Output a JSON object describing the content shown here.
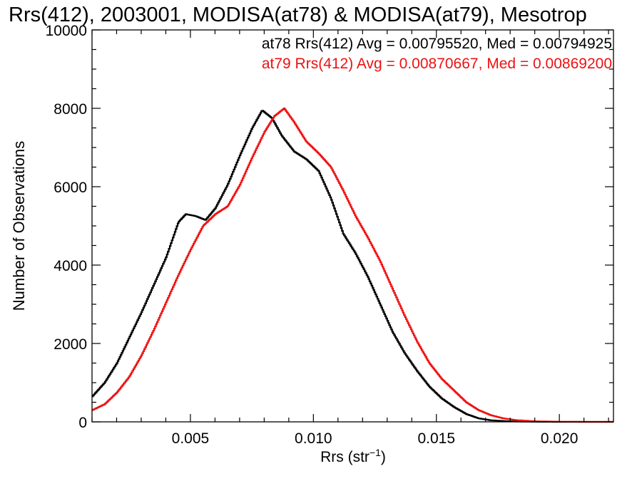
{
  "chart_data": {
    "type": "line",
    "title": "Rrs(412), 2003001, MODISA(at78) & MODISA(at79), Mesotrop",
    "xlabel_main": "Rrs (str",
    "xlabel_sup": "−1",
    "xlabel_close": ")",
    "ylabel": "Number of Observations",
    "xlim": [
      0.001,
      0.0222
    ],
    "ylim": [
      0,
      10000
    ],
    "x_ticks": [
      {
        "value": 0.005,
        "label": "0.005"
      },
      {
        "value": 0.01,
        "label": "0.010"
      },
      {
        "value": 0.015,
        "label": "0.015"
      },
      {
        "value": 0.02,
        "label": "0.020"
      }
    ],
    "y_ticks": [
      {
        "value": 0,
        "label": "0"
      },
      {
        "value": 2000,
        "label": "2000"
      },
      {
        "value": 4000,
        "label": "4000"
      },
      {
        "value": 6000,
        "label": "6000"
      },
      {
        "value": 8000,
        "label": "8000"
      },
      {
        "value": 10000,
        "label": "10000"
      }
    ],
    "grid": false,
    "legend_position": "top-right",
    "series": [
      {
        "name": "at78",
        "legend": "at78 Rrs(412) Avg = 0.00795520, Med = 0.00794925",
        "color": "#000000",
        "points": [
          [
            0.001,
            650
          ],
          [
            0.0015,
            1000
          ],
          [
            0.002,
            1500
          ],
          [
            0.0025,
            2150
          ],
          [
            0.003,
            2800
          ],
          [
            0.0035,
            3500
          ],
          [
            0.004,
            4200
          ],
          [
            0.0045,
            5100
          ],
          [
            0.0048,
            5300
          ],
          [
            0.0052,
            5250
          ],
          [
            0.0056,
            5150
          ],
          [
            0.006,
            5450
          ],
          [
            0.0065,
            6050
          ],
          [
            0.007,
            6800
          ],
          [
            0.0075,
            7500
          ],
          [
            0.0079,
            7950
          ],
          [
            0.0083,
            7750
          ],
          [
            0.0087,
            7300
          ],
          [
            0.0092,
            6900
          ],
          [
            0.0097,
            6700
          ],
          [
            0.0102,
            6400
          ],
          [
            0.0107,
            5700
          ],
          [
            0.0112,
            4800
          ],
          [
            0.0117,
            4300
          ],
          [
            0.0122,
            3700
          ],
          [
            0.0127,
            3000
          ],
          [
            0.0132,
            2300
          ],
          [
            0.0137,
            1750
          ],
          [
            0.0142,
            1300
          ],
          [
            0.0147,
            900
          ],
          [
            0.0152,
            600
          ],
          [
            0.0157,
            380
          ],
          [
            0.0162,
            200
          ],
          [
            0.0167,
            90
          ],
          [
            0.0172,
            40
          ],
          [
            0.018,
            12
          ],
          [
            0.019,
            3
          ],
          [
            0.02,
            0
          ],
          [
            0.0222,
            0
          ]
        ]
      },
      {
        "name": "at79",
        "legend": "at79 Rrs(412) Avg = 0.00870667, Med = 0.00869200",
        "color": "#ee1111",
        "points": [
          [
            0.001,
            300
          ],
          [
            0.0015,
            450
          ],
          [
            0.002,
            750
          ],
          [
            0.0025,
            1150
          ],
          [
            0.003,
            1700
          ],
          [
            0.0035,
            2350
          ],
          [
            0.004,
            3050
          ],
          [
            0.0045,
            3750
          ],
          [
            0.005,
            4400
          ],
          [
            0.0055,
            5000
          ],
          [
            0.006,
            5300
          ],
          [
            0.0065,
            5500
          ],
          [
            0.007,
            6050
          ],
          [
            0.0075,
            6750
          ],
          [
            0.008,
            7400
          ],
          [
            0.0084,
            7800
          ],
          [
            0.0088,
            8000
          ],
          [
            0.0092,
            7650
          ],
          [
            0.0097,
            7150
          ],
          [
            0.0102,
            6850
          ],
          [
            0.0107,
            6500
          ],
          [
            0.0112,
            5900
          ],
          [
            0.0117,
            5250
          ],
          [
            0.0122,
            4700
          ],
          [
            0.0127,
            4100
          ],
          [
            0.0132,
            3400
          ],
          [
            0.0137,
            2700
          ],
          [
            0.0142,
            2050
          ],
          [
            0.0147,
            1500
          ],
          [
            0.0152,
            1100
          ],
          [
            0.0157,
            800
          ],
          [
            0.0162,
            500
          ],
          [
            0.0167,
            300
          ],
          [
            0.0172,
            170
          ],
          [
            0.0177,
            90
          ],
          [
            0.0182,
            45
          ],
          [
            0.019,
            15
          ],
          [
            0.02,
            4
          ],
          [
            0.021,
            0
          ],
          [
            0.0222,
            0
          ]
        ]
      }
    ]
  }
}
